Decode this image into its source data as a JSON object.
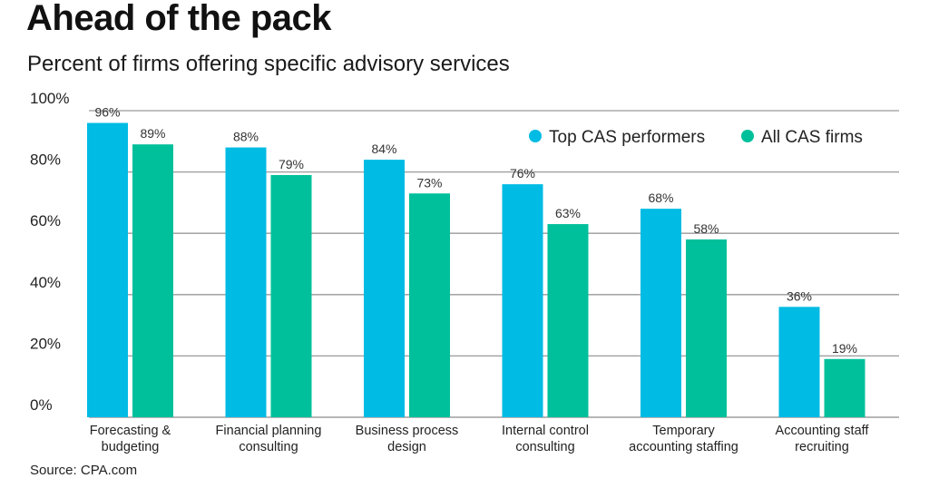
{
  "header": {
    "title": "Ahead of the pack",
    "subtitle": "Percent of firms offering specific advisory services"
  },
  "footer": {
    "source": "Source: CPA.com"
  },
  "colors": {
    "top": "#00BBE4",
    "all": "#00C09B",
    "grid": "#9a9a9a"
  },
  "chart_data": {
    "type": "bar",
    "title": "Ahead of the pack",
    "subtitle": "Percent of firms offering specific advisory services",
    "xlabel": "",
    "ylabel": "",
    "ylim": [
      0,
      100
    ],
    "yticks": [
      0,
      20,
      40,
      60,
      80,
      100
    ],
    "ytick_labels": [
      "0%",
      "20%",
      "40%",
      "60%",
      "80%",
      "100%"
    ],
    "grid": true,
    "legend_position": "top-right",
    "categories": [
      [
        "Forecasting &",
        "budgeting"
      ],
      [
        "Financial planning",
        "consulting"
      ],
      [
        "Business process",
        "design"
      ],
      [
        "Internal control",
        "consulting"
      ],
      [
        "Temporary",
        "accounting staffing"
      ],
      [
        "Accounting staff",
        "recruiting"
      ]
    ],
    "series": [
      {
        "name": "Top CAS performers",
        "color": "#00BBE4",
        "values": [
          96,
          88,
          84,
          76,
          68,
          36
        ]
      },
      {
        "name": "All CAS firms",
        "color": "#00C09B",
        "values": [
          89,
          79,
          73,
          63,
          58,
          19
        ]
      }
    ],
    "value_label_suffix": "%"
  }
}
